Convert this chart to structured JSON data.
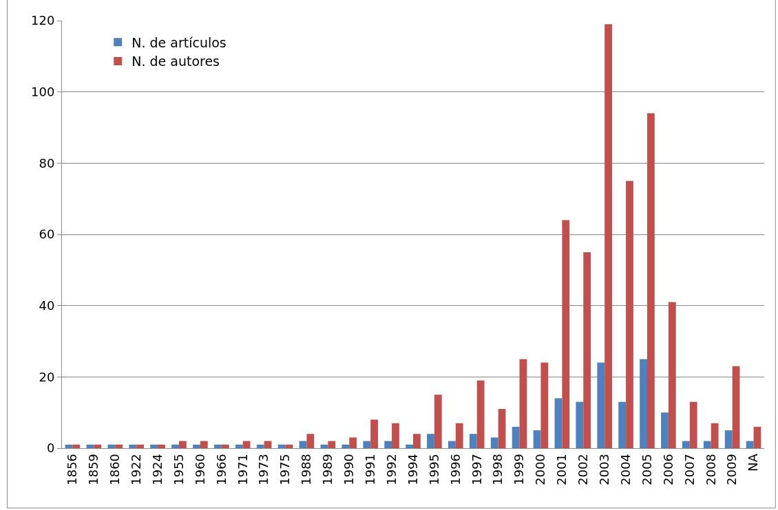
{
  "chart_data": {
    "type": "bar",
    "categories": [
      "1856",
      "1859",
      "1860",
      "1922",
      "1924",
      "1955",
      "1960",
      "1966",
      "1971",
      "1973",
      "1975",
      "1988",
      "1989",
      "1990",
      "1991",
      "1992",
      "1994",
      "1995",
      "1996",
      "1997",
      "1998",
      "1999",
      "2000",
      "2001",
      "2002",
      "2003",
      "2004",
      "2005",
      "2006",
      "2007",
      "2008",
      "2009",
      "NA"
    ],
    "series": [
      {
        "name": "N. de artículos",
        "color": "#4f81bd",
        "values": [
          1,
          1,
          1,
          1,
          1,
          1,
          1,
          1,
          1,
          1,
          1,
          2,
          1,
          1,
          2,
          2,
          1,
          4,
          2,
          4,
          3,
          6,
          5,
          14,
          13,
          24,
          13,
          25,
          10,
          2,
          2,
          5,
          2
        ]
      },
      {
        "name": "N. de autores",
        "color": "#c0504d",
        "values": [
          1,
          1,
          1,
          1,
          1,
          2,
          2,
          1,
          2,
          2,
          1,
          4,
          2,
          3,
          8,
          7,
          4,
          15,
          7,
          19,
          11,
          25,
          24,
          64,
          55,
          119,
          75,
          94,
          41,
          13,
          7,
          23,
          6
        ]
      }
    ],
    "ylim": [
      0,
      120
    ],
    "yticks": [
      0,
      20,
      40,
      60,
      80,
      100,
      120
    ],
    "grid": "y",
    "legend": "top left"
  }
}
